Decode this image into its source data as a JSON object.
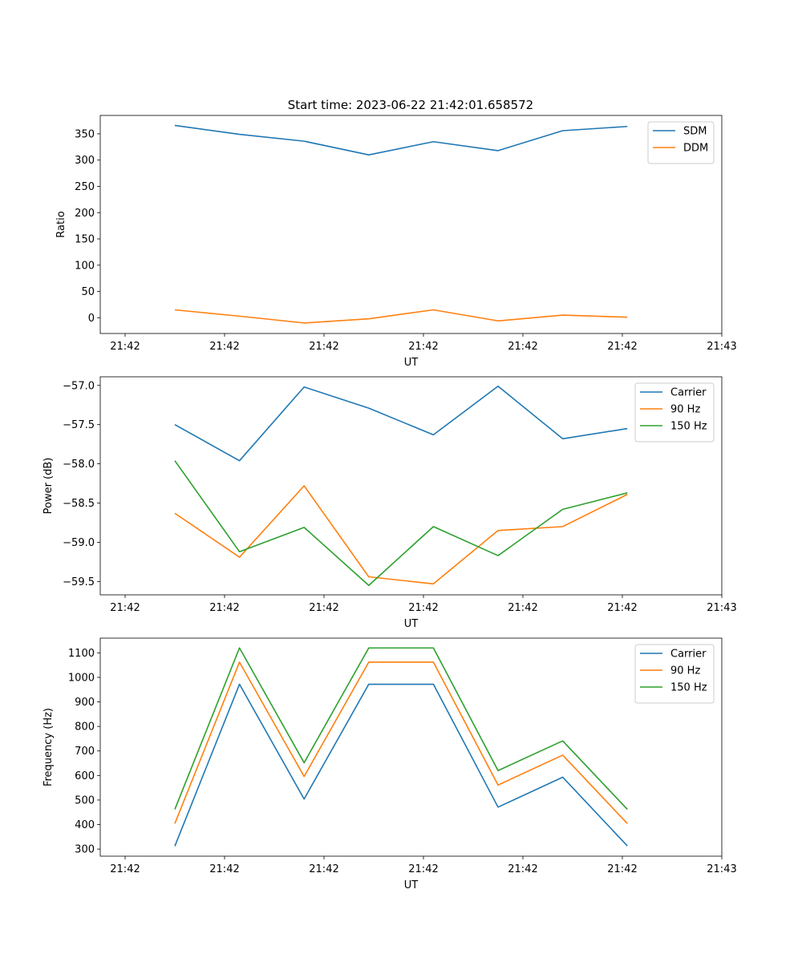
{
  "figure": {
    "title": "Start time: 2023-06-22 21:42:01.658572"
  },
  "chart_data": [
    {
      "type": "line",
      "xlabel": "UT",
      "ylabel": "Ratio",
      "xlim": [
        -0.15,
        1.1
      ],
      "ylim": [
        -30,
        385
      ],
      "x_ticks": [
        {
          "pos": -0.1,
          "label": "21:42"
        },
        {
          "pos": 0.1,
          "label": "21:42"
        },
        {
          "pos": 0.3,
          "label": "21:42"
        },
        {
          "pos": 0.5,
          "label": "21:42"
        },
        {
          "pos": 0.7,
          "label": "21:42"
        },
        {
          "pos": 0.9,
          "label": "21:42"
        },
        {
          "pos": 1.1,
          "label": "21:43"
        }
      ],
      "y_ticks": [
        0,
        50,
        100,
        150,
        200,
        250,
        300,
        350
      ],
      "x": [
        0.0,
        0.13,
        0.26,
        0.39,
        0.52,
        0.65,
        0.78,
        0.91
      ],
      "series": [
        {
          "name": "SDM",
          "color": "#1f77b4",
          "values": [
            366,
            349,
            336,
            310,
            335,
            318,
            356,
            364
          ]
        },
        {
          "name": "DDM",
          "color": "#ff7f0e",
          "values": [
            15,
            3,
            -10,
            -2,
            15,
            -6,
            5,
            1
          ]
        }
      ],
      "legend": "top-right"
    },
    {
      "type": "line",
      "xlabel": "UT",
      "ylabel": "Power (dB)",
      "xlim": [
        -0.15,
        1.1
      ],
      "ylim": [
        -59.67,
        -56.89
      ],
      "x_ticks": [
        {
          "pos": -0.1,
          "label": "21:42"
        },
        {
          "pos": 0.1,
          "label": "21:42"
        },
        {
          "pos": 0.3,
          "label": "21:42"
        },
        {
          "pos": 0.5,
          "label": "21:42"
        },
        {
          "pos": 0.7,
          "label": "21:42"
        },
        {
          "pos": 0.9,
          "label": "21:42"
        },
        {
          "pos": 1.1,
          "label": "21:43"
        }
      ],
      "y_ticks": [
        -57.0,
        -57.5,
        -58.0,
        -58.5,
        -59.0,
        -59.5
      ],
      "y_tick_labels": [
        "−57.0",
        "−57.5",
        "−58.0",
        "−58.5",
        "−59.0",
        "−59.5"
      ],
      "x": [
        0.0,
        0.13,
        0.26,
        0.39,
        0.52,
        0.65,
        0.78,
        0.91
      ],
      "series": [
        {
          "name": "Carrier",
          "color": "#1f77b4",
          "values": [
            -57.5,
            -57.96,
            -57.02,
            -57.29,
            -57.63,
            -57.01,
            -57.68,
            -57.55
          ]
        },
        {
          "name": "90 Hz",
          "color": "#ff7f0e",
          "values": [
            -58.63,
            -59.19,
            -58.28,
            -59.44,
            -59.53,
            -58.85,
            -58.8,
            -58.39
          ]
        },
        {
          "name": "150 Hz",
          "color": "#2ca02c",
          "values": [
            -57.96,
            -59.12,
            -58.81,
            -59.55,
            -58.8,
            -59.17,
            -58.58,
            -58.37
          ]
        }
      ],
      "legend": "top-right"
    },
    {
      "type": "line",
      "xlabel": "UT",
      "ylabel": "Frequency (Hz)",
      "xlim": [
        -0.15,
        1.1
      ],
      "ylim": [
        271,
        1160
      ],
      "x_ticks": [
        {
          "pos": -0.1,
          "label": "21:42"
        },
        {
          "pos": 0.1,
          "label": "21:42"
        },
        {
          "pos": 0.3,
          "label": "21:42"
        },
        {
          "pos": 0.5,
          "label": "21:42"
        },
        {
          "pos": 0.7,
          "label": "21:42"
        },
        {
          "pos": 0.9,
          "label": "21:42"
        },
        {
          "pos": 1.1,
          "label": "21:43"
        }
      ],
      "y_ticks": [
        300,
        400,
        500,
        600,
        700,
        800,
        900,
        1000,
        1100
      ],
      "x": [
        0.0,
        0.13,
        0.26,
        0.39,
        0.52,
        0.65,
        0.78,
        0.91
      ],
      "series": [
        {
          "name": "Carrier",
          "color": "#1f77b4",
          "values": [
            312,
            972,
            504,
            972,
            972,
            471,
            593,
            313
          ]
        },
        {
          "name": "90 Hz",
          "color": "#ff7f0e",
          "values": [
            404,
            1062,
            596,
            1062,
            1062,
            561,
            683,
            404
          ]
        },
        {
          "name": "150 Hz",
          "color": "#2ca02c",
          "values": [
            462,
            1120,
            652,
            1120,
            1120,
            620,
            741,
            462
          ]
        }
      ],
      "legend": "top-right"
    }
  ]
}
